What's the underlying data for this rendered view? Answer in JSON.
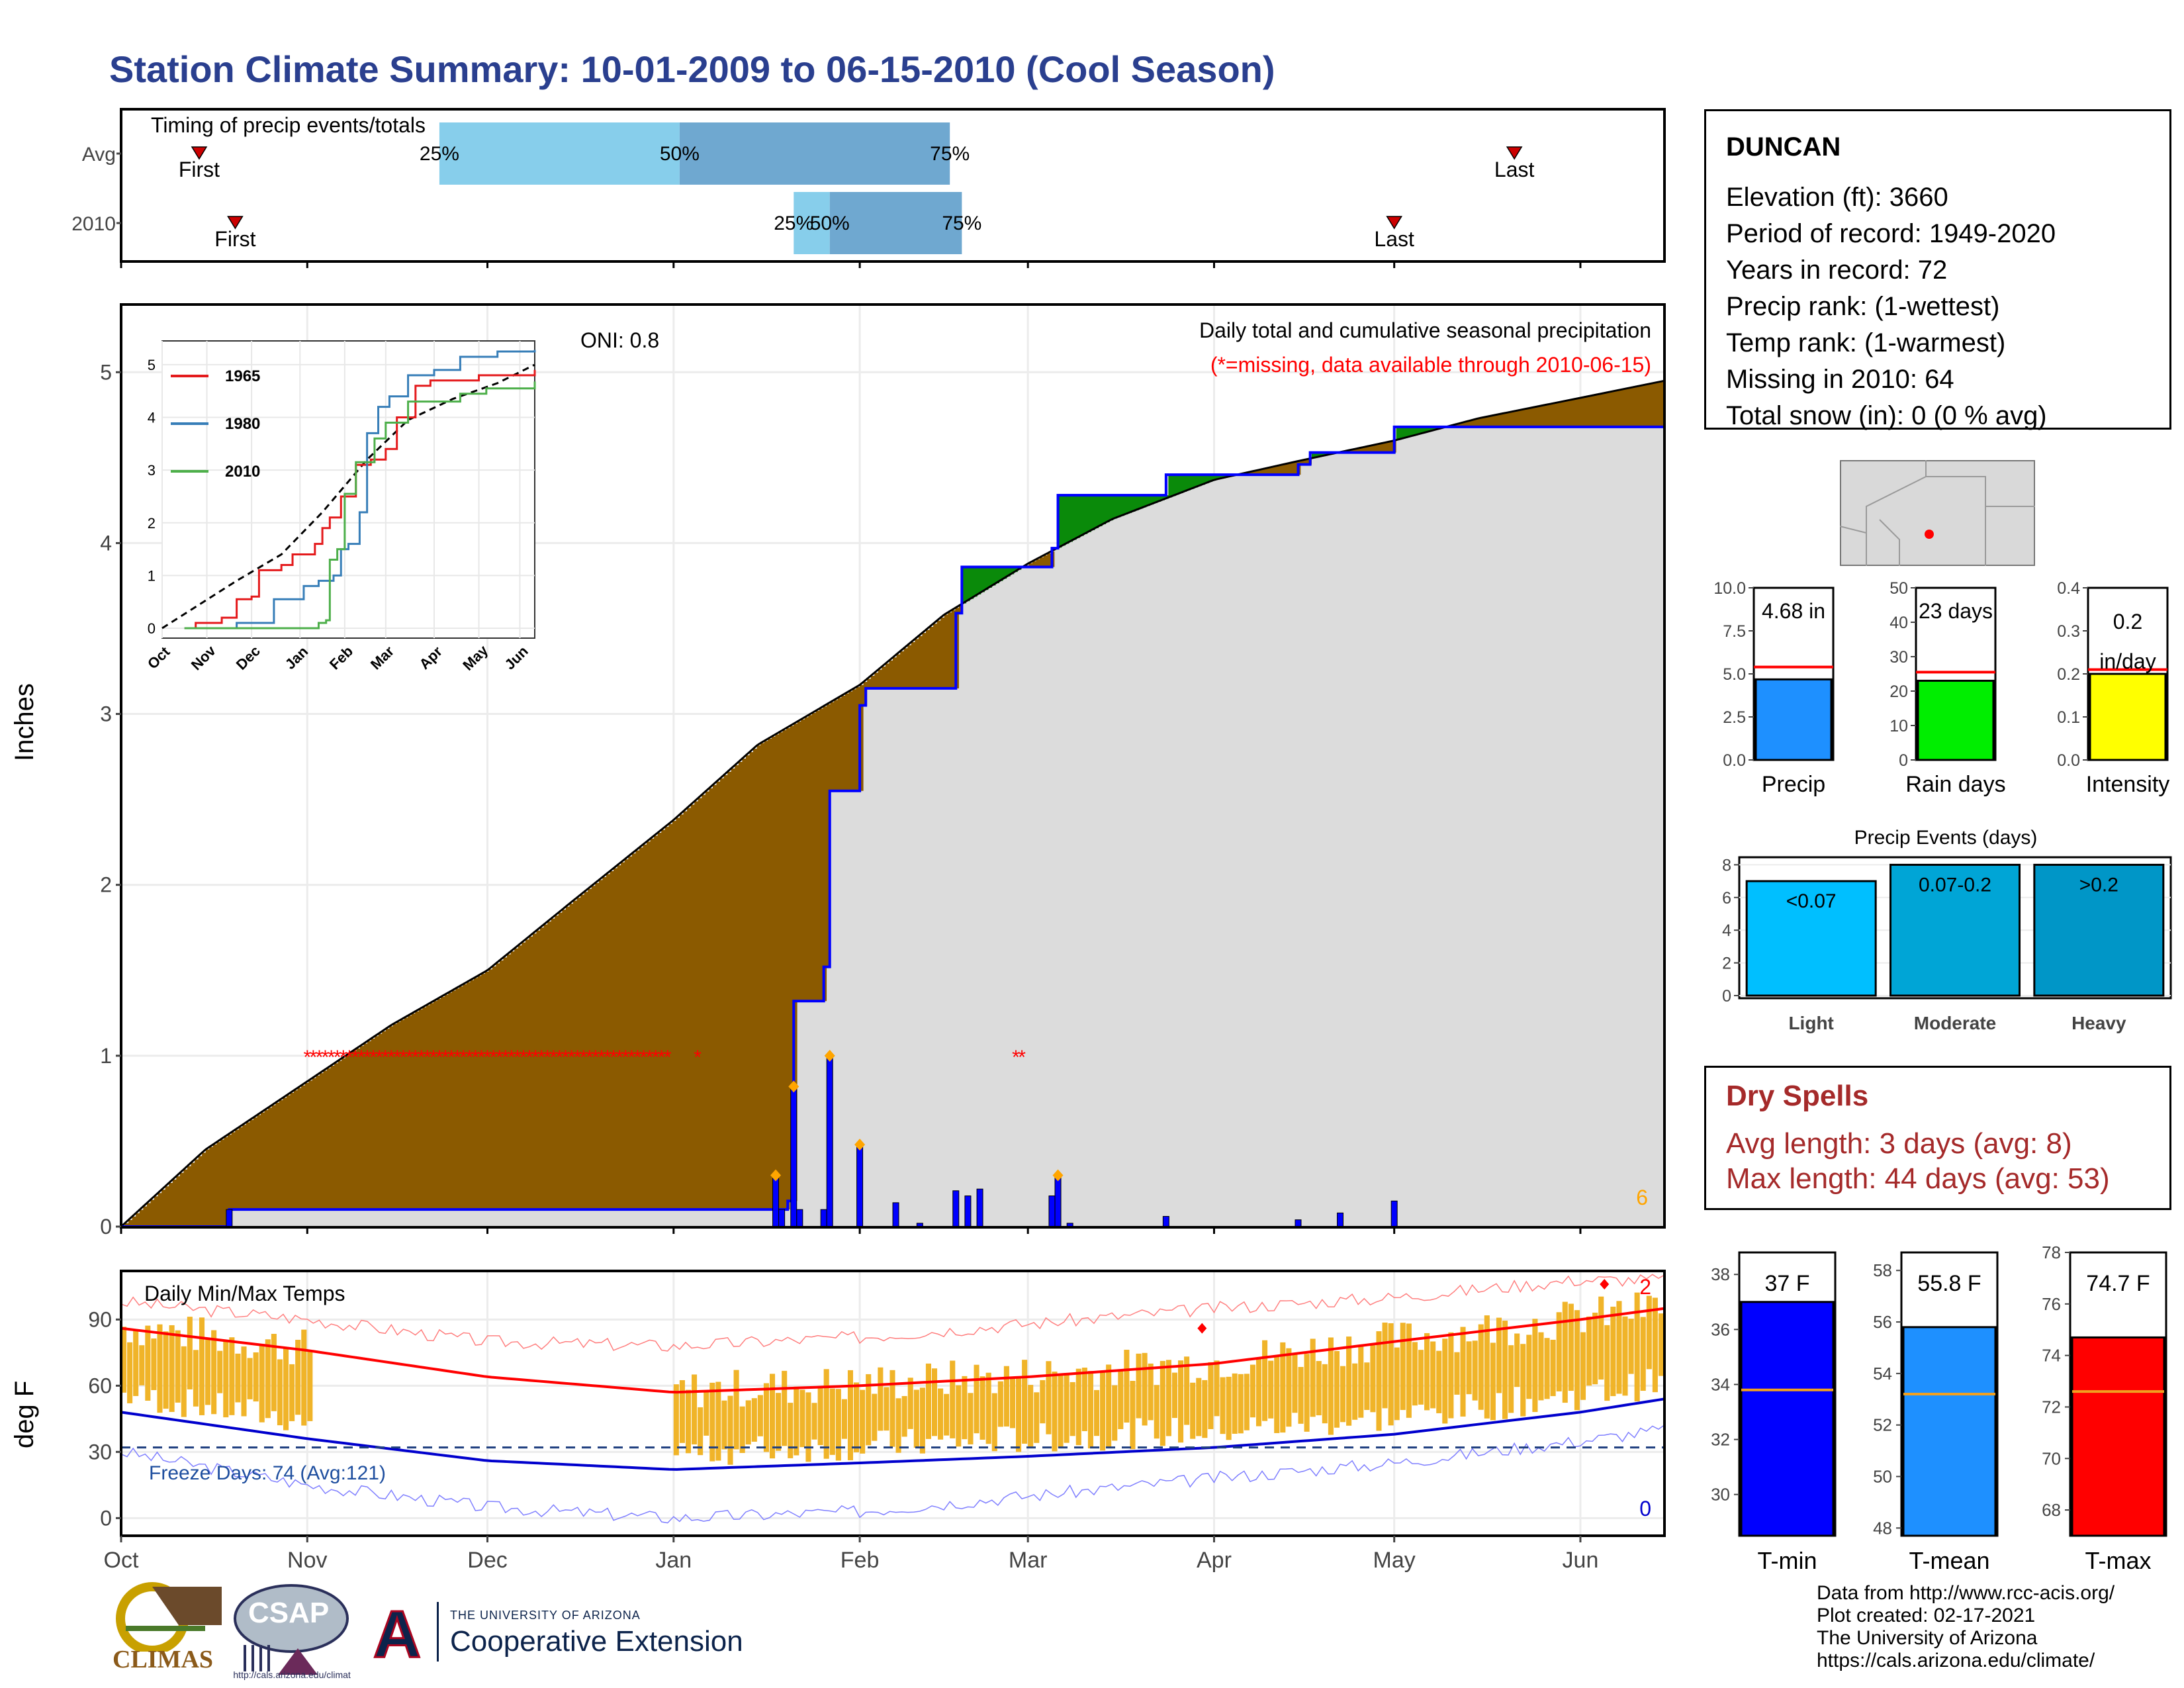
{
  "title": "Station Climate Summary: 10-01-2009 to 06-15-2010 (Cool Season)",
  "timing": {
    "label": "Timing of precip events/totals",
    "rows": [
      {
        "name": "Avg",
        "first": "2009-10-14",
        "p25": "2009-11-23",
        "p50": "2010-01-02",
        "p75": "2010-02-16",
        "last": "2010-05-21"
      },
      {
        "name": "2010",
        "first": "2009-10-20",
        "p25": "2010-01-21",
        "p50": "2010-01-27",
        "p75": "2010-02-18",
        "last": "2010-05-01"
      }
    ],
    "first_label": "First",
    "last_label": "Last",
    "p25_label": "25%",
    "p50_label": "50%",
    "p75_label": "75%"
  },
  "precip_panel": {
    "ylabel": "Inches",
    "title": "Daily total and cumulative seasonal precipitation",
    "missing_note": "(*=missing, data available through 2010-06-15)",
    "oni": "ONI: 0.8",
    "corner_value": "6",
    "yticks": [
      "0",
      "1",
      "2",
      "3",
      "4",
      "5"
    ]
  },
  "temp_panel": {
    "ylabel": "deg F",
    "title": "Daily Min/Max Temps",
    "freeze_label": "Freeze Days: 74 (Avg:121)",
    "max_count": "2",
    "min_count": "0",
    "yticks": [
      "0",
      "30",
      "60",
      "90"
    ]
  },
  "x_months": [
    "Oct",
    "Nov",
    "Dec",
    "Jan",
    "Feb",
    "Mar",
    "Apr",
    "May",
    "Jun"
  ],
  "inset": {
    "months": [
      "Oct",
      "Nov",
      "Dec",
      "Jan",
      "Feb",
      "Mar",
      "Apr",
      "May",
      "Jun"
    ],
    "yticks": [
      "0",
      "1",
      "2",
      "3",
      "4",
      "5"
    ],
    "legend": [
      {
        "name": "1965",
        "color": "#e41a1c"
      },
      {
        "name": "1980",
        "color": "#377eb8"
      },
      {
        "name": "2010",
        "color": "#4daf4a"
      }
    ]
  },
  "station": {
    "name": "DUNCAN",
    "lines": [
      "Elevation (ft): 3660",
      "Period of record: 1949-2020",
      "Years in record: 72",
      "Precip rank:  (1-wettest)",
      "Temp rank:  (1-warmest)",
      "Missing in 2010: 64",
      "Total snow (in): 0 (0 % avg)"
    ]
  },
  "summary_bars": [
    {
      "label": "Precip",
      "value_label": "4.68 in",
      "value": 4.68,
      "avg": 5.4,
      "ymax": 10,
      "yticks": [
        "0.0",
        "2.5",
        "5.0",
        "7.5",
        "10.0"
      ],
      "color": "#1e90ff"
    },
    {
      "label": "Rain days",
      "value_label": "23 days",
      "value": 23,
      "avg": 25.5,
      "ymax": 50,
      "yticks": [
        "0",
        "10",
        "20",
        "30",
        "40",
        "50"
      ],
      "color": "#00ee00"
    },
    {
      "label": "Intensity",
      "value_label": "0.2 in/day",
      "value": 0.2,
      "avg": 0.21,
      "ymax": 0.4,
      "yticks": [
        "0.0",
        "0.1",
        "0.2",
        "0.3",
        "0.4"
      ],
      "color": "#ffff00"
    }
  ],
  "events": {
    "title": "Precip Events (days)",
    "yticks": [
      "0",
      "2",
      "4",
      "6",
      "8"
    ],
    "bars": [
      {
        "cat": "Light",
        "label": "<0.07",
        "value": 7,
        "color": "#00bfff"
      },
      {
        "cat": "Moderate",
        "label": "0.07-0.2",
        "value": 8,
        "color": "#00a5d6"
      },
      {
        "cat": "Heavy",
        "label": ">0.2",
        "value": 8,
        "color": "#0096c7"
      }
    ]
  },
  "dry_spells": {
    "title": "Dry Spells",
    "avg_line": "Avg length: 3 days (avg: 8)",
    "max_line": "Max length: 44 days (avg: 53)"
  },
  "temp_bars": [
    {
      "label": "T-min",
      "value_label": "37 F",
      "value": 37,
      "avg": 33.8,
      "ymin": 28.5,
      "ymax": 38.8,
      "yticks": [
        "30",
        "32",
        "34",
        "36",
        "38"
      ],
      "color": "#0000ff"
    },
    {
      "label": "T-mean",
      "value_label": "55.8 F",
      "value": 55.8,
      "avg": 53.2,
      "ymin": 47.7,
      "ymax": 58.7,
      "yticks": [
        "48",
        "50",
        "52",
        "54",
        "56",
        "58"
      ],
      "color": "#1e90ff"
    },
    {
      "label": "T-max",
      "value_label": "74.7 F",
      "value": 74.7,
      "avg": 72.6,
      "ymin": 67,
      "ymax": 78,
      "yticks": [
        "68",
        "70",
        "72",
        "74",
        "76",
        "78"
      ],
      "color": "#ff0000"
    }
  ],
  "credits": [
    "Data from http://www.rcc-acis.org/",
    "Plot created: 02-17-2021",
    "The University of Arizona",
    "https://cals.arizona.edu/climate/"
  ],
  "logos": {
    "climas": "CLIMAS",
    "csap": "CSAP",
    "csap_url": "http://cals.arizona.edu/climate",
    "ua_small": "THE UNIVERSITY OF ARIZONA",
    "coop": "Cooperative Extension",
    "ua_letter": "A"
  },
  "chart_data": [
    {
      "type": "area",
      "title": "Daily total and cumulative seasonal precipitation",
      "ylabel": "Inches",
      "ylim": [
        0,
        5.4
      ],
      "xlim": [
        "2009-10-01",
        "2010-06-15"
      ],
      "series": [
        {
          "name": "Avg",
          "values_kind": "cumulative average",
          "x": [
            "2009-10-01",
            "2009-10-15",
            "2009-11-01",
            "2009-11-15",
            "2009-12-01",
            "2009-12-15",
            "2010-01-01",
            "2010-01-15",
            "2010-02-01",
            "2010-02-15",
            "2010-03-01",
            "2010-03-15",
            "2010-04-01",
            "2010-04-15",
            "2010-05-01",
            "2010-05-15",
            "2010-06-01",
            "2010-06-15"
          ],
          "y": [
            0,
            0.45,
            0.85,
            1.18,
            1.5,
            1.9,
            2.38,
            2.82,
            3.17,
            3.58,
            3.88,
            4.14,
            4.37,
            4.48,
            4.6,
            4.73,
            4.85,
            4.95
          ]
        },
        {
          "name": "2010",
          "values_kind": "cumulative observed",
          "x": [
            "2009-10-01",
            "2009-10-19",
            "2010-01-17",
            "2010-01-20",
            "2010-01-21",
            "2010-01-26",
            "2010-01-27",
            "2010-02-01",
            "2010-02-02",
            "2010-02-17",
            "2010-02-18",
            "2010-03-05",
            "2010-03-06",
            "2010-03-24",
            "2010-04-15",
            "2010-04-17",
            "2010-05-01",
            "2010-06-15"
          ],
          "y": [
            0,
            0.1,
            0.1,
            0.15,
            1.32,
            1.52,
            2.55,
            3.05,
            3.15,
            3.59,
            3.86,
            3.97,
            4.28,
            4.4,
            4.46,
            4.53,
            4.68,
            4.68
          ]
        }
      ],
      "daily_bars": {
        "x": [
          "2009-10-19",
          "2010-01-18",
          "2010-01-19",
          "2010-01-21",
          "2010-01-22",
          "2010-01-26",
          "2010-01-27",
          "2010-02-01",
          "2010-02-07",
          "2010-02-11",
          "2010-02-17",
          "2010-02-19",
          "2010-02-21",
          "2010-03-05",
          "2010-03-06",
          "2010-03-08",
          "2010-03-24",
          "2010-04-15",
          "2010-04-22",
          "2010-05-01"
        ],
        "y": [
          0.1,
          0.3,
          0.1,
          0.82,
          0.1,
          0.1,
          1.0,
          0.48,
          0.14,
          0.02,
          0.21,
          0.18,
          0.22,
          0.18,
          0.3,
          0.02,
          0.06,
          0.04,
          0.08,
          0.15
        ]
      },
      "missing_dates_range": [
        [
          "2009-11-01",
          "2009-12-31"
        ],
        [
          "2010-01-05",
          "2010-01-05"
        ],
        [
          "2010-02-27",
          "2010-02-28"
        ]
      ]
    },
    {
      "type": "line",
      "title": "Daily Min/Max Temps",
      "ylabel": "deg F",
      "ylim": [
        -8,
        112
      ],
      "freeze_threshold": 32,
      "series": [
        {
          "name": "avg max",
          "x": [
            "2009-10-01",
            "2009-11-01",
            "2009-12-01",
            "2010-01-01",
            "2010-02-01",
            "2010-03-01",
            "2010-04-01",
            "2010-05-01",
            "2010-06-01",
            "2010-06-15"
          ],
          "y": [
            86,
            76,
            64,
            57,
            60,
            64,
            70,
            80,
            90,
            95
          ]
        },
        {
          "name": "avg min",
          "x": [
            "2009-10-01",
            "2009-11-01",
            "2009-12-01",
            "2010-01-01",
            "2010-02-01",
            "2010-03-01",
            "2010-04-01",
            "2010-05-01",
            "2010-06-01",
            "2010-06-15"
          ],
          "y": [
            48,
            36,
            26,
            22,
            25,
            28,
            32,
            38,
            48,
            54
          ]
        },
        {
          "name": "record max",
          "x": [
            "2009-10-01",
            "2009-11-01",
            "2009-12-01",
            "2010-01-01",
            "2010-02-01",
            "2010-03-01",
            "2010-04-01",
            "2010-05-01",
            "2010-06-01",
            "2010-06-15"
          ],
          "y": [
            98,
            90,
            80,
            78,
            82,
            88,
            95,
            100,
            108,
            108
          ]
        },
        {
          "name": "record min",
          "x": [
            "2009-10-01",
            "2009-11-01",
            "2009-12-01",
            "2010-01-01",
            "2010-02-01",
            "2010-03-01",
            "2010-04-01",
            "2010-05-01",
            "2010-06-01",
            "2010-06-15"
          ],
          "y": [
            30,
            15,
            5,
            0,
            3,
            10,
            18,
            25,
            35,
            40
          ]
        }
      ]
    }
  ]
}
